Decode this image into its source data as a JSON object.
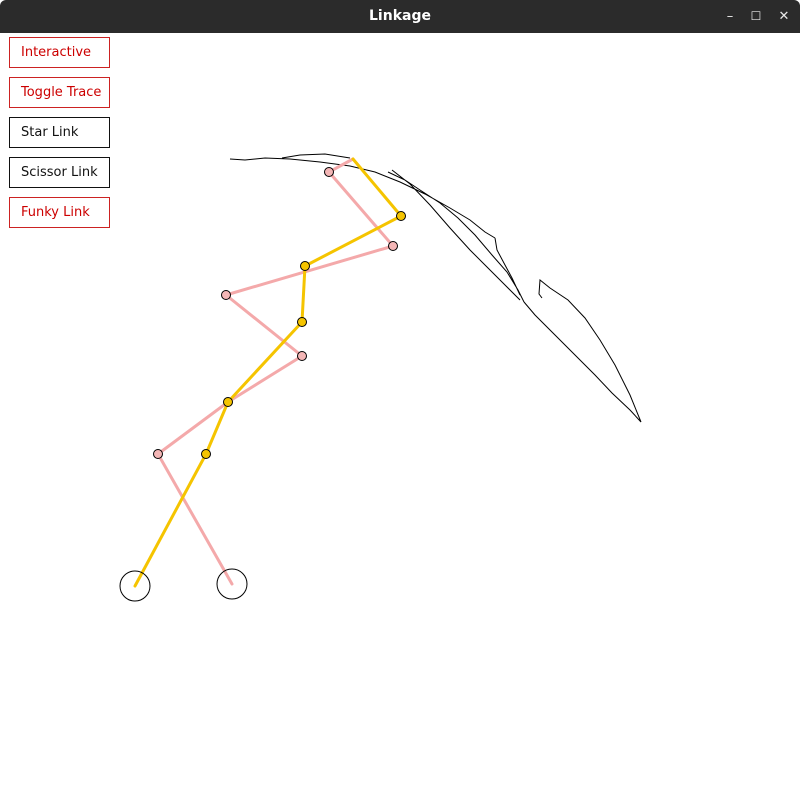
{
  "window": {
    "title": "Linkage",
    "minimize_glyph": "–",
    "maximize_glyph": "☐",
    "close_glyph": "✕"
  },
  "toolbar": {
    "buttons": [
      {
        "label": "Interactive",
        "style": "red"
      },
      {
        "label": "Toggle Trace",
        "style": "red"
      },
      {
        "label": "Star Link",
        "style": "dark"
      },
      {
        "label": "Scissor Link",
        "style": "dark"
      },
      {
        "label": "Funky Link",
        "style": "red"
      }
    ]
  },
  "colors": {
    "titlebar": "#2b2b2b",
    "active_button_text": "#cc0000",
    "inactive_button_text": "#111111",
    "yellow_link": "#f5c400",
    "pink_link": "#f4a9aa",
    "pink_joint": "#f4b6b6",
    "yellow_joint": "#f5c400",
    "trace": "#000000"
  }
}
